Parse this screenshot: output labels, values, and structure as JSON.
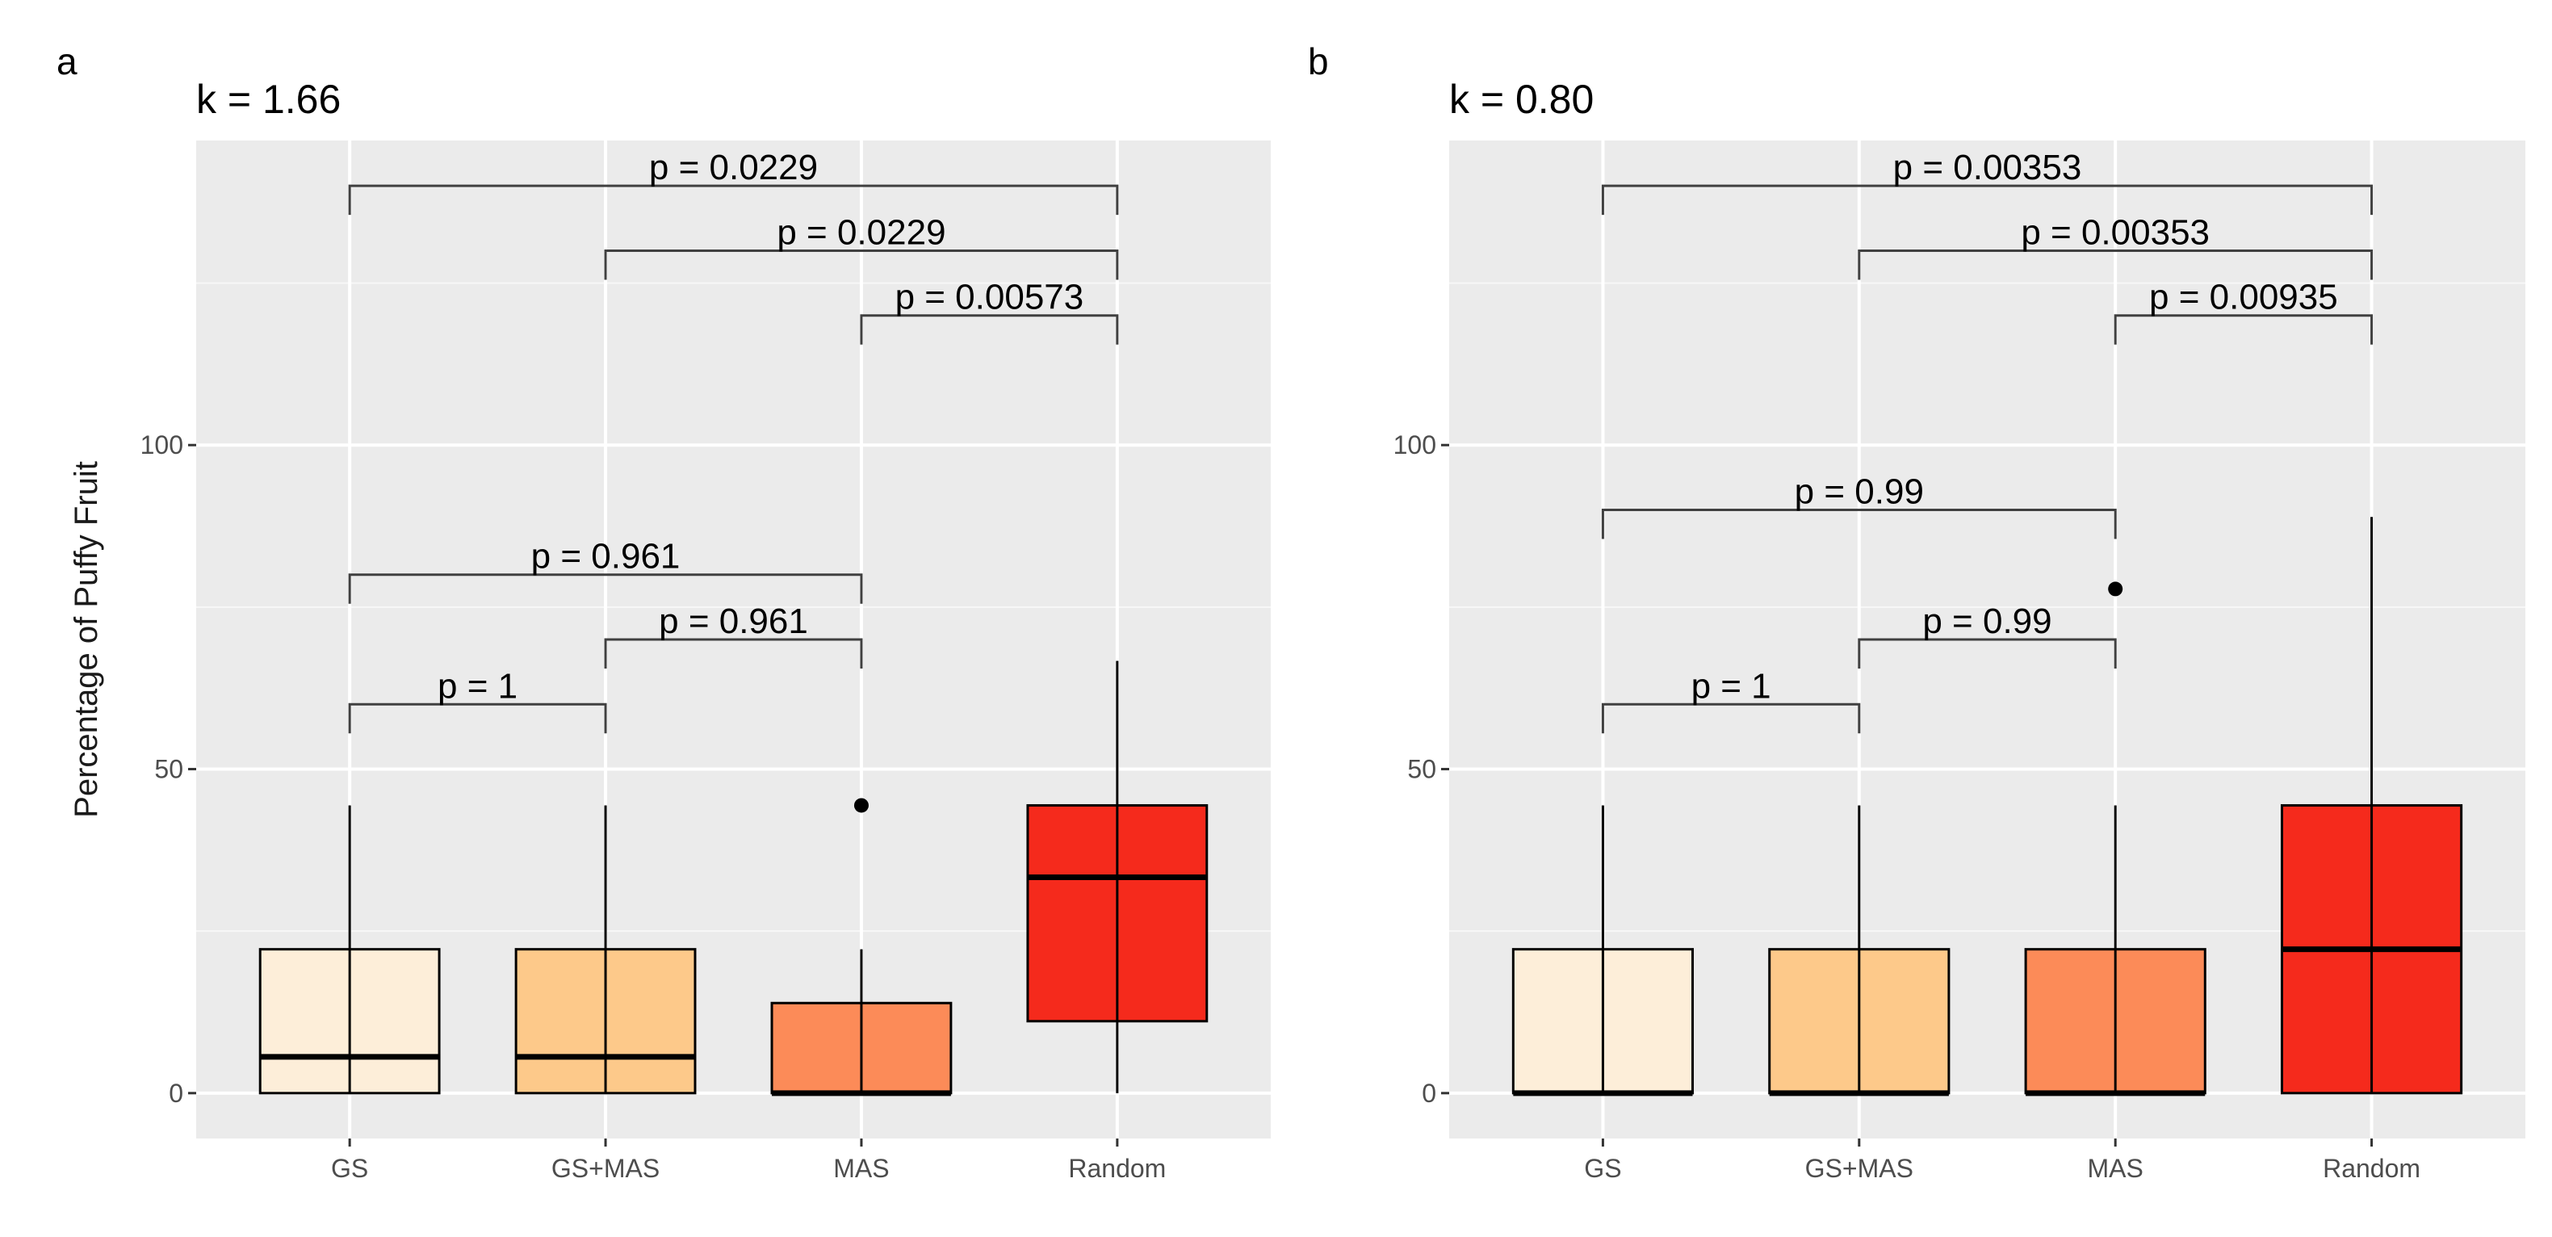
{
  "chart_data": [
    {
      "type": "boxplot",
      "panel_label": "a",
      "title": "k = 1.66",
      "xlabel": "",
      "ylabel": "Percentage of Puffy Fruit",
      "categories": [
        "GS",
        "GS+MAS",
        "MAS",
        "Random"
      ],
      "y_ticks": [
        0,
        50,
        100
      ],
      "y_tick_labels": [
        "0",
        "50",
        "100"
      ],
      "ylim": [
        -7,
        147
      ],
      "colors": [
        "#fdeed9",
        "#fdc98a",
        "#fc8b58",
        "#f52a1c"
      ],
      "boxes": [
        {
          "category": "GS",
          "lower_whisker": 0,
          "q1": 0,
          "median": 5.6,
          "q3": 22.2,
          "upper_whisker": 44.4,
          "outliers": []
        },
        {
          "category": "GS+MAS",
          "lower_whisker": 0,
          "q1": 0,
          "median": 5.6,
          "q3": 22.2,
          "upper_whisker": 44.4,
          "outliers": []
        },
        {
          "category": "MAS",
          "lower_whisker": 0,
          "q1": 0,
          "median": 0,
          "q3": 13.9,
          "upper_whisker": 22.2,
          "outliers": [
            44.4
          ]
        },
        {
          "category": "Random",
          "lower_whisker": 0,
          "q1": 11.1,
          "median": 33.3,
          "q3": 44.4,
          "upper_whisker": 66.7,
          "outliers": []
        }
      ],
      "comparisons": [
        {
          "from": 0,
          "to": 1,
          "label": "p = 1",
          "y": 60
        },
        {
          "from": 1,
          "to": 2,
          "label": "p = 0.961",
          "y": 70
        },
        {
          "from": 0,
          "to": 2,
          "label": "p = 0.961",
          "y": 80
        },
        {
          "from": 2,
          "to": 3,
          "label": "p = 0.00573",
          "y": 120
        },
        {
          "from": 1,
          "to": 3,
          "label": "p = 0.0229",
          "y": 130
        },
        {
          "from": 0,
          "to": 3,
          "label": "p = 0.0229",
          "y": 140
        }
      ]
    },
    {
      "type": "boxplot",
      "panel_label": "b",
      "title": "k = 0.80",
      "xlabel": "",
      "ylabel": "",
      "categories": [
        "GS",
        "GS+MAS",
        "MAS",
        "Random"
      ],
      "y_ticks": [
        0,
        50,
        100
      ],
      "y_tick_labels": [
        "0",
        "50",
        "100"
      ],
      "ylim": [
        -7,
        147
      ],
      "colors": [
        "#fdeed9",
        "#fdc98a",
        "#fc8b58",
        "#f52a1c"
      ],
      "boxes": [
        {
          "category": "GS",
          "lower_whisker": 0,
          "q1": 0,
          "median": 0,
          "q3": 22.2,
          "upper_whisker": 44.4,
          "outliers": []
        },
        {
          "category": "GS+MAS",
          "lower_whisker": 0,
          "q1": 0,
          "median": 0,
          "q3": 22.2,
          "upper_whisker": 44.4,
          "outliers": []
        },
        {
          "category": "MAS",
          "lower_whisker": 0,
          "q1": 0,
          "median": 0,
          "q3": 22.2,
          "upper_whisker": 44.4,
          "outliers": [
            77.8
          ]
        },
        {
          "category": "Random",
          "lower_whisker": 0,
          "q1": 0,
          "median": 22.2,
          "q3": 44.4,
          "upper_whisker": 88.9,
          "outliers": []
        }
      ],
      "comparisons": [
        {
          "from": 0,
          "to": 1,
          "label": "p = 1",
          "y": 60
        },
        {
          "from": 1,
          "to": 2,
          "label": "p = 0.99",
          "y": 70
        },
        {
          "from": 0,
          "to": 2,
          "label": "p = 0.99",
          "y": 90
        },
        {
          "from": 2,
          "to": 3,
          "label": "p = 0.00935",
          "y": 120
        },
        {
          "from": 1,
          "to": 3,
          "label": "p = 0.00353",
          "y": 130
        },
        {
          "from": 0,
          "to": 3,
          "label": "p = 0.00353",
          "y": 140
        }
      ]
    }
  ]
}
